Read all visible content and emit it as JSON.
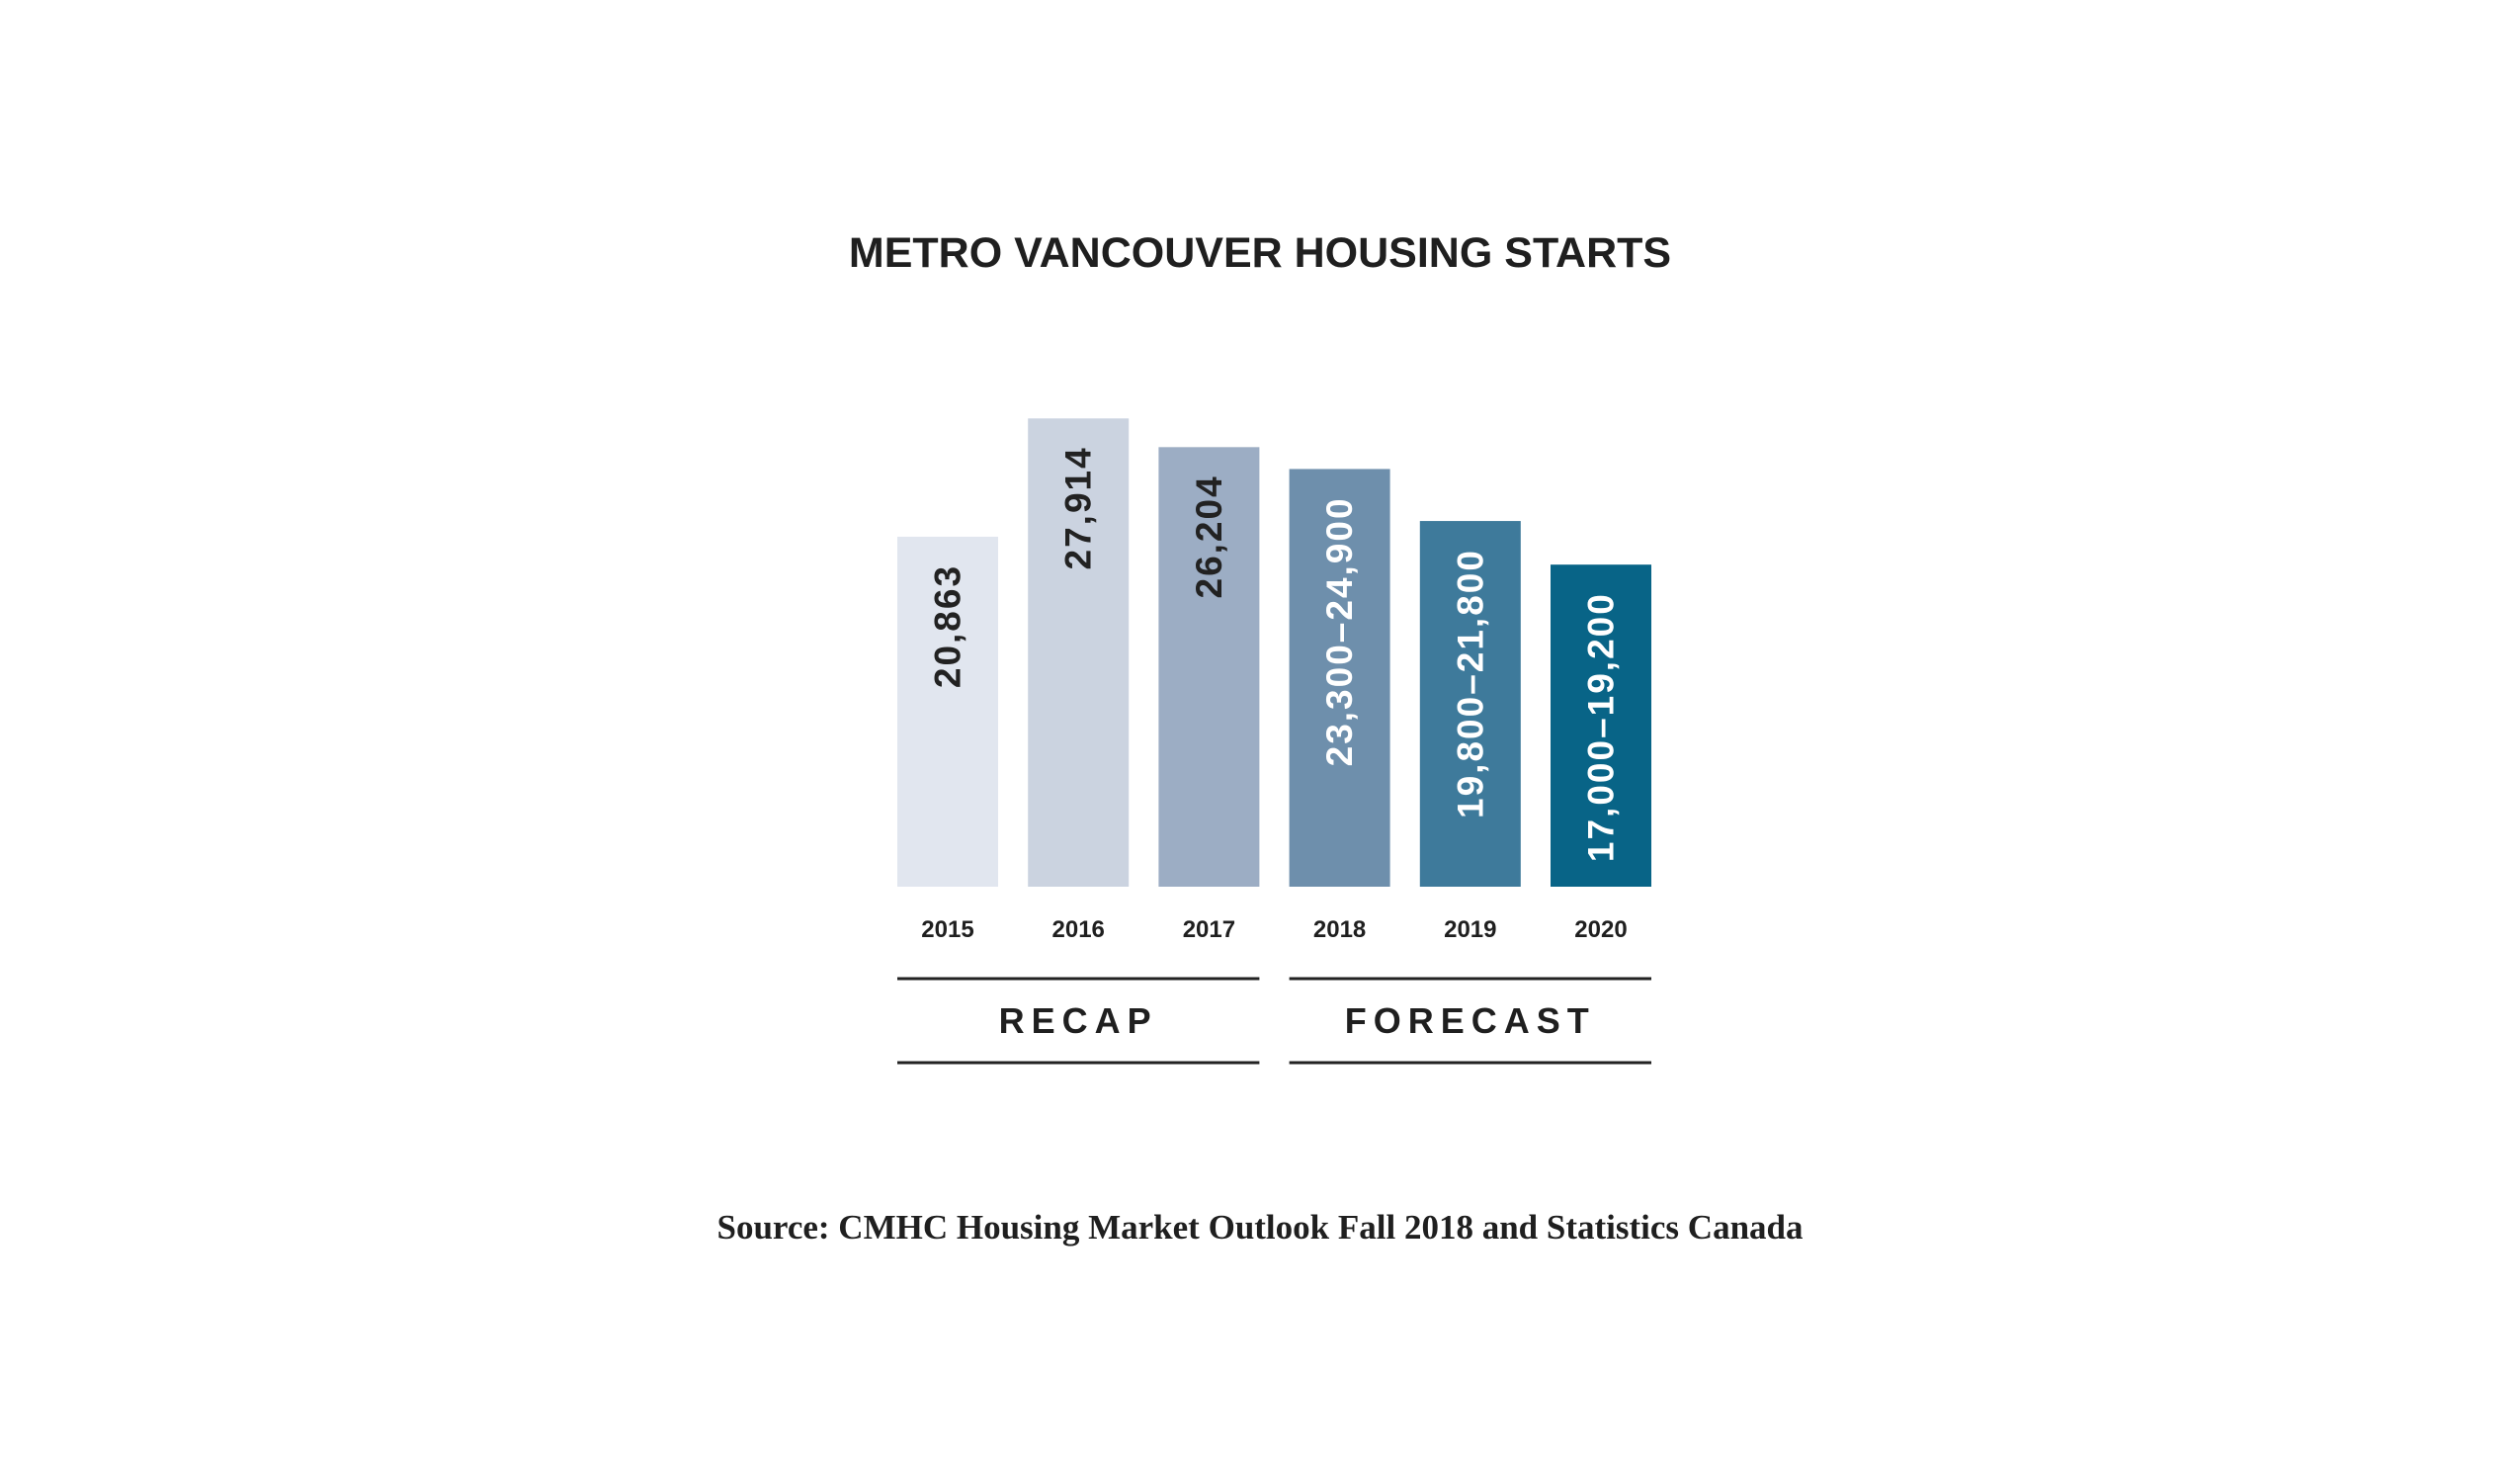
{
  "chart_data": {
    "type": "bar",
    "title": "METRO VANCOUVER HOUSING STARTS",
    "xlabel": "",
    "ylabel": "",
    "categories": [
      "2015",
      "2016",
      "2017",
      "2018",
      "2019",
      "2020"
    ],
    "values": [
      20863,
      27914,
      26204,
      24900,
      21800,
      19200
    ],
    "ranges": [
      null,
      null,
      null,
      [
        23300,
        24900
      ],
      [
        19800,
        21800
      ],
      [
        17000,
        19200
      ]
    ],
    "data_labels": [
      "20,863",
      "27,914",
      "26,204",
      "23,300–24,900",
      "19,800–21,800",
      "17,000–19,200"
    ],
    "bar_colors": [
      "#e1e6ef",
      "#cbd3e0",
      "#9cadc4",
      "#6e8fac",
      "#3e7a9b",
      "#086487"
    ],
    "label_colors": [
      "#222222",
      "#222222",
      "#222222",
      "#ffffff",
      "#ffffff",
      "#ffffff"
    ],
    "groups": [
      {
        "label": "RECAP",
        "categories": [
          "2015",
          "2016",
          "2017"
        ]
      },
      {
        "label": "FORECAST",
        "categories": [
          "2018",
          "2019",
          "2020"
        ]
      }
    ],
    "grid": false,
    "legend": "none",
    "source": "Source: CMHC Housing Market Outlook Fall 2018 and Statistics Canada"
  }
}
